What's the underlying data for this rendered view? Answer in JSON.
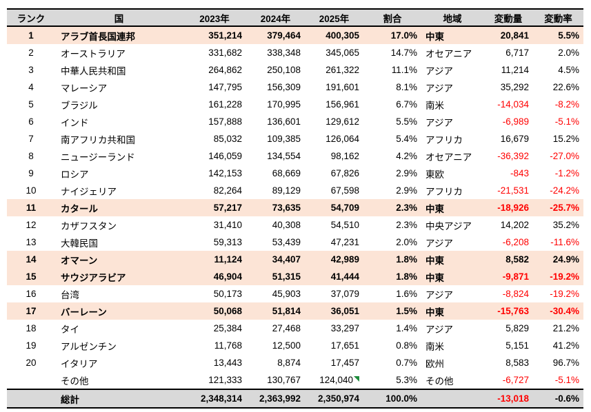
{
  "colors": {
    "header_bg": "#D9D9D9",
    "highlight_bg": "#FCE4D6",
    "total_bg": "#D9D9D9",
    "negative_text": "#FF0000",
    "marker_green": "#1E8C3C"
  },
  "table": {
    "headers": {
      "rank": "ランク",
      "country": "国",
      "y2023": "2023年",
      "y2024": "2024年",
      "y2025": "2025年",
      "share": "割合",
      "region": "地域",
      "change": "変動量",
      "rate": "変動率"
    },
    "rows": [
      {
        "rank": "1",
        "country": "アラブ首長国連邦",
        "y2023": "351,214",
        "y2024": "379,464",
        "y2025": "400,305",
        "share": "17.0%",
        "region": "中東",
        "change": "20,841",
        "rate": "5.5%",
        "highlight": true
      },
      {
        "rank": "2",
        "country": "オーストラリア",
        "y2023": "331,682",
        "y2024": "338,348",
        "y2025": "345,065",
        "share": "14.7%",
        "region": "オセアニア",
        "change": "6,717",
        "rate": "2.0%"
      },
      {
        "rank": "3",
        "country": "中華人民共和国",
        "y2023": "264,862",
        "y2024": "250,108",
        "y2025": "261,322",
        "share": "11.1%",
        "region": "アジア",
        "change": "11,214",
        "rate": "4.5%"
      },
      {
        "rank": "4",
        "country": "マレーシア",
        "y2023": "147,795",
        "y2024": "156,309",
        "y2025": "191,601",
        "share": "8.1%",
        "region": "アジア",
        "change": "35,292",
        "rate": "22.6%"
      },
      {
        "rank": "5",
        "country": "ブラジル",
        "y2023": "161,228",
        "y2024": "170,995",
        "y2025": "156,961",
        "share": "6.7%",
        "region": "南米",
        "change": "-14,034",
        "rate": "-8.2%"
      },
      {
        "rank": "6",
        "country": "インド",
        "y2023": "157,888",
        "y2024": "136,601",
        "y2025": "129,612",
        "share": "5.5%",
        "region": "アジア",
        "change": "-6,989",
        "rate": "-5.1%"
      },
      {
        "rank": "7",
        "country": "南アフリカ共和国",
        "y2023": "85,032",
        "y2024": "109,385",
        "y2025": "126,064",
        "share": "5.4%",
        "region": "アフリカ",
        "change": "16,679",
        "rate": "15.2%"
      },
      {
        "rank": "8",
        "country": "ニュージーランド",
        "y2023": "146,059",
        "y2024": "134,554",
        "y2025": "98,162",
        "share": "4.2%",
        "region": "オセアニア",
        "change": "-36,392",
        "rate": "-27.0%"
      },
      {
        "rank": "9",
        "country": "ロシア",
        "y2023": "142,153",
        "y2024": "68,669",
        "y2025": "67,826",
        "share": "2.9%",
        "region": "東欧",
        "change": "-843",
        "rate": "-1.2%"
      },
      {
        "rank": "10",
        "country": "ナイジェリア",
        "y2023": "82,264",
        "y2024": "89,129",
        "y2025": "67,598",
        "share": "2.9%",
        "region": "アフリカ",
        "change": "-21,531",
        "rate": "-24.2%"
      },
      {
        "rank": "11",
        "country": "カタール",
        "y2023": "57,217",
        "y2024": "73,635",
        "y2025": "54,709",
        "share": "2.3%",
        "region": "中東",
        "change": "-18,926",
        "rate": "-25.7%",
        "highlight": true
      },
      {
        "rank": "12",
        "country": "カザフスタン",
        "y2023": "31,410",
        "y2024": "40,308",
        "y2025": "54,510",
        "share": "2.3%",
        "region": "中央アジア",
        "change": "14,202",
        "rate": "35.2%"
      },
      {
        "rank": "13",
        "country": "大韓民国",
        "y2023": "59,313",
        "y2024": "53,439",
        "y2025": "47,231",
        "share": "2.0%",
        "region": "アジア",
        "change": "-6,208",
        "rate": "-11.6%"
      },
      {
        "rank": "14",
        "country": "オマーン",
        "y2023": "11,124",
        "y2024": "34,407",
        "y2025": "42,989",
        "share": "1.8%",
        "region": "中東",
        "change": "8,582",
        "rate": "24.9%",
        "highlight": true
      },
      {
        "rank": "15",
        "country": "サウジアラビア",
        "y2023": "46,904",
        "y2024": "51,315",
        "y2025": "41,444",
        "share": "1.8%",
        "region": "中東",
        "change": "-9,871",
        "rate": "-19.2%",
        "highlight": true
      },
      {
        "rank": "16",
        "country": "台湾",
        "y2023": "50,173",
        "y2024": "45,903",
        "y2025": "37,079",
        "share": "1.6%",
        "region": "アジア",
        "change": "-8,824",
        "rate": "-19.2%"
      },
      {
        "rank": "17",
        "country": "バーレーン",
        "y2023": "50,068",
        "y2024": "51,814",
        "y2025": "36,051",
        "share": "1.5%",
        "region": "中東",
        "change": "-15,763",
        "rate": "-30.4%",
        "highlight": true
      },
      {
        "rank": "18",
        "country": "タイ",
        "y2023": "25,384",
        "y2024": "27,468",
        "y2025": "33,297",
        "share": "1.4%",
        "region": "アジア",
        "change": "5,829",
        "rate": "21.2%"
      },
      {
        "rank": "19",
        "country": "アルゼンチン",
        "y2023": "11,768",
        "y2024": "12,500",
        "y2025": "17,651",
        "share": "0.8%",
        "region": "南米",
        "change": "5,151",
        "rate": "41.2%"
      },
      {
        "rank": "20",
        "country": "イタリア",
        "y2023": "13,443",
        "y2024": "8,874",
        "y2025": "17,457",
        "share": "0.7%",
        "region": "欧州",
        "change": "8,583",
        "rate": "96.7%"
      },
      {
        "rank": "",
        "country": "その他",
        "y2023": "121,333",
        "y2024": "130,767",
        "y2025": "124,040",
        "share": "5.3%",
        "region": "その他",
        "change": "-6,727",
        "rate": "-5.1%",
        "marker_2025": true
      }
    ],
    "total": {
      "label": "総計",
      "y2023": "2,348,314",
      "y2024": "2,363,992",
      "y2025": "2,350,974",
      "share": "100.0%",
      "region": "",
      "change": "-13,018",
      "rate": "-0.6%",
      "change_red": true,
      "rate_red": false
    }
  }
}
